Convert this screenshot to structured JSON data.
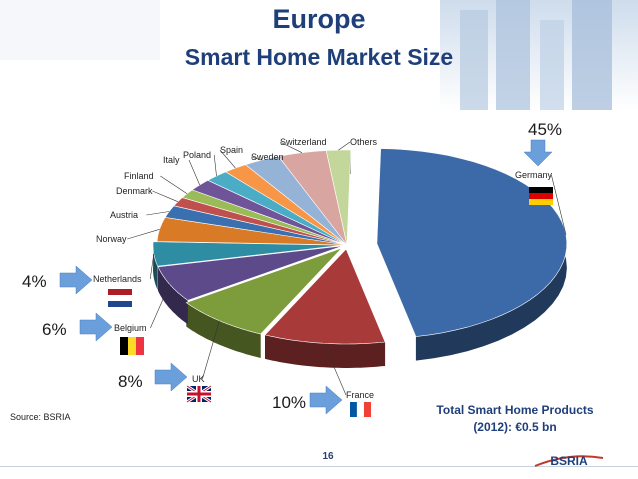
{
  "title": "Europe",
  "subtitle": "Smart Home Market Size",
  "source": "Source: BSRIA",
  "page_number": "16",
  "total_line1": "Total Smart Home Products",
  "total_line2": "(2012): €0.5 bn",
  "logo_text": "BSRIA",
  "callouts": {
    "germany": "45%",
    "netherlands": "4%",
    "belgium": "6%",
    "uk": "8%",
    "france": "10%"
  },
  "colors": {
    "title": "#1f3f7a",
    "arrow": "#6a9fdc"
  },
  "chart_data": {
    "type": "pie",
    "title": "Smart Home Market Size",
    "total": "€0.5 bn",
    "slices": [
      {
        "label": "Germany",
        "value": 45,
        "color": "#3c6aa8"
      },
      {
        "label": "France",
        "value": 10,
        "color": "#a83a3a"
      },
      {
        "label": "UK",
        "value": 8,
        "color": "#7d9c3c"
      },
      {
        "label": "Belgium",
        "value": 6,
        "color": "#5c4a8a"
      },
      {
        "label": "Netherlands",
        "value": 4,
        "color": "#2e8ca3"
      },
      {
        "label": "Norway",
        "value": 4,
        "color": "#d97a26"
      },
      {
        "label": "Austria",
        "value": 2,
        "color": "#3a6fb0"
      },
      {
        "label": "Denmark",
        "value": 1.5,
        "color": "#c0504d"
      },
      {
        "label": "Finland",
        "value": 1.5,
        "color": "#9bbb59"
      },
      {
        "label": "Italy",
        "value": 2,
        "color": "#6f5499"
      },
      {
        "label": "Poland",
        "value": 2,
        "color": "#4bacc6"
      },
      {
        "label": "Spain",
        "value": 2,
        "color": "#f79646"
      },
      {
        "label": "Sweden",
        "value": 3,
        "color": "#95b3d7"
      },
      {
        "label": "Switzerland",
        "value": 4,
        "color": "#d9a5a0"
      },
      {
        "label": "Others",
        "value": 2,
        "color": "#c4d79b"
      }
    ]
  }
}
